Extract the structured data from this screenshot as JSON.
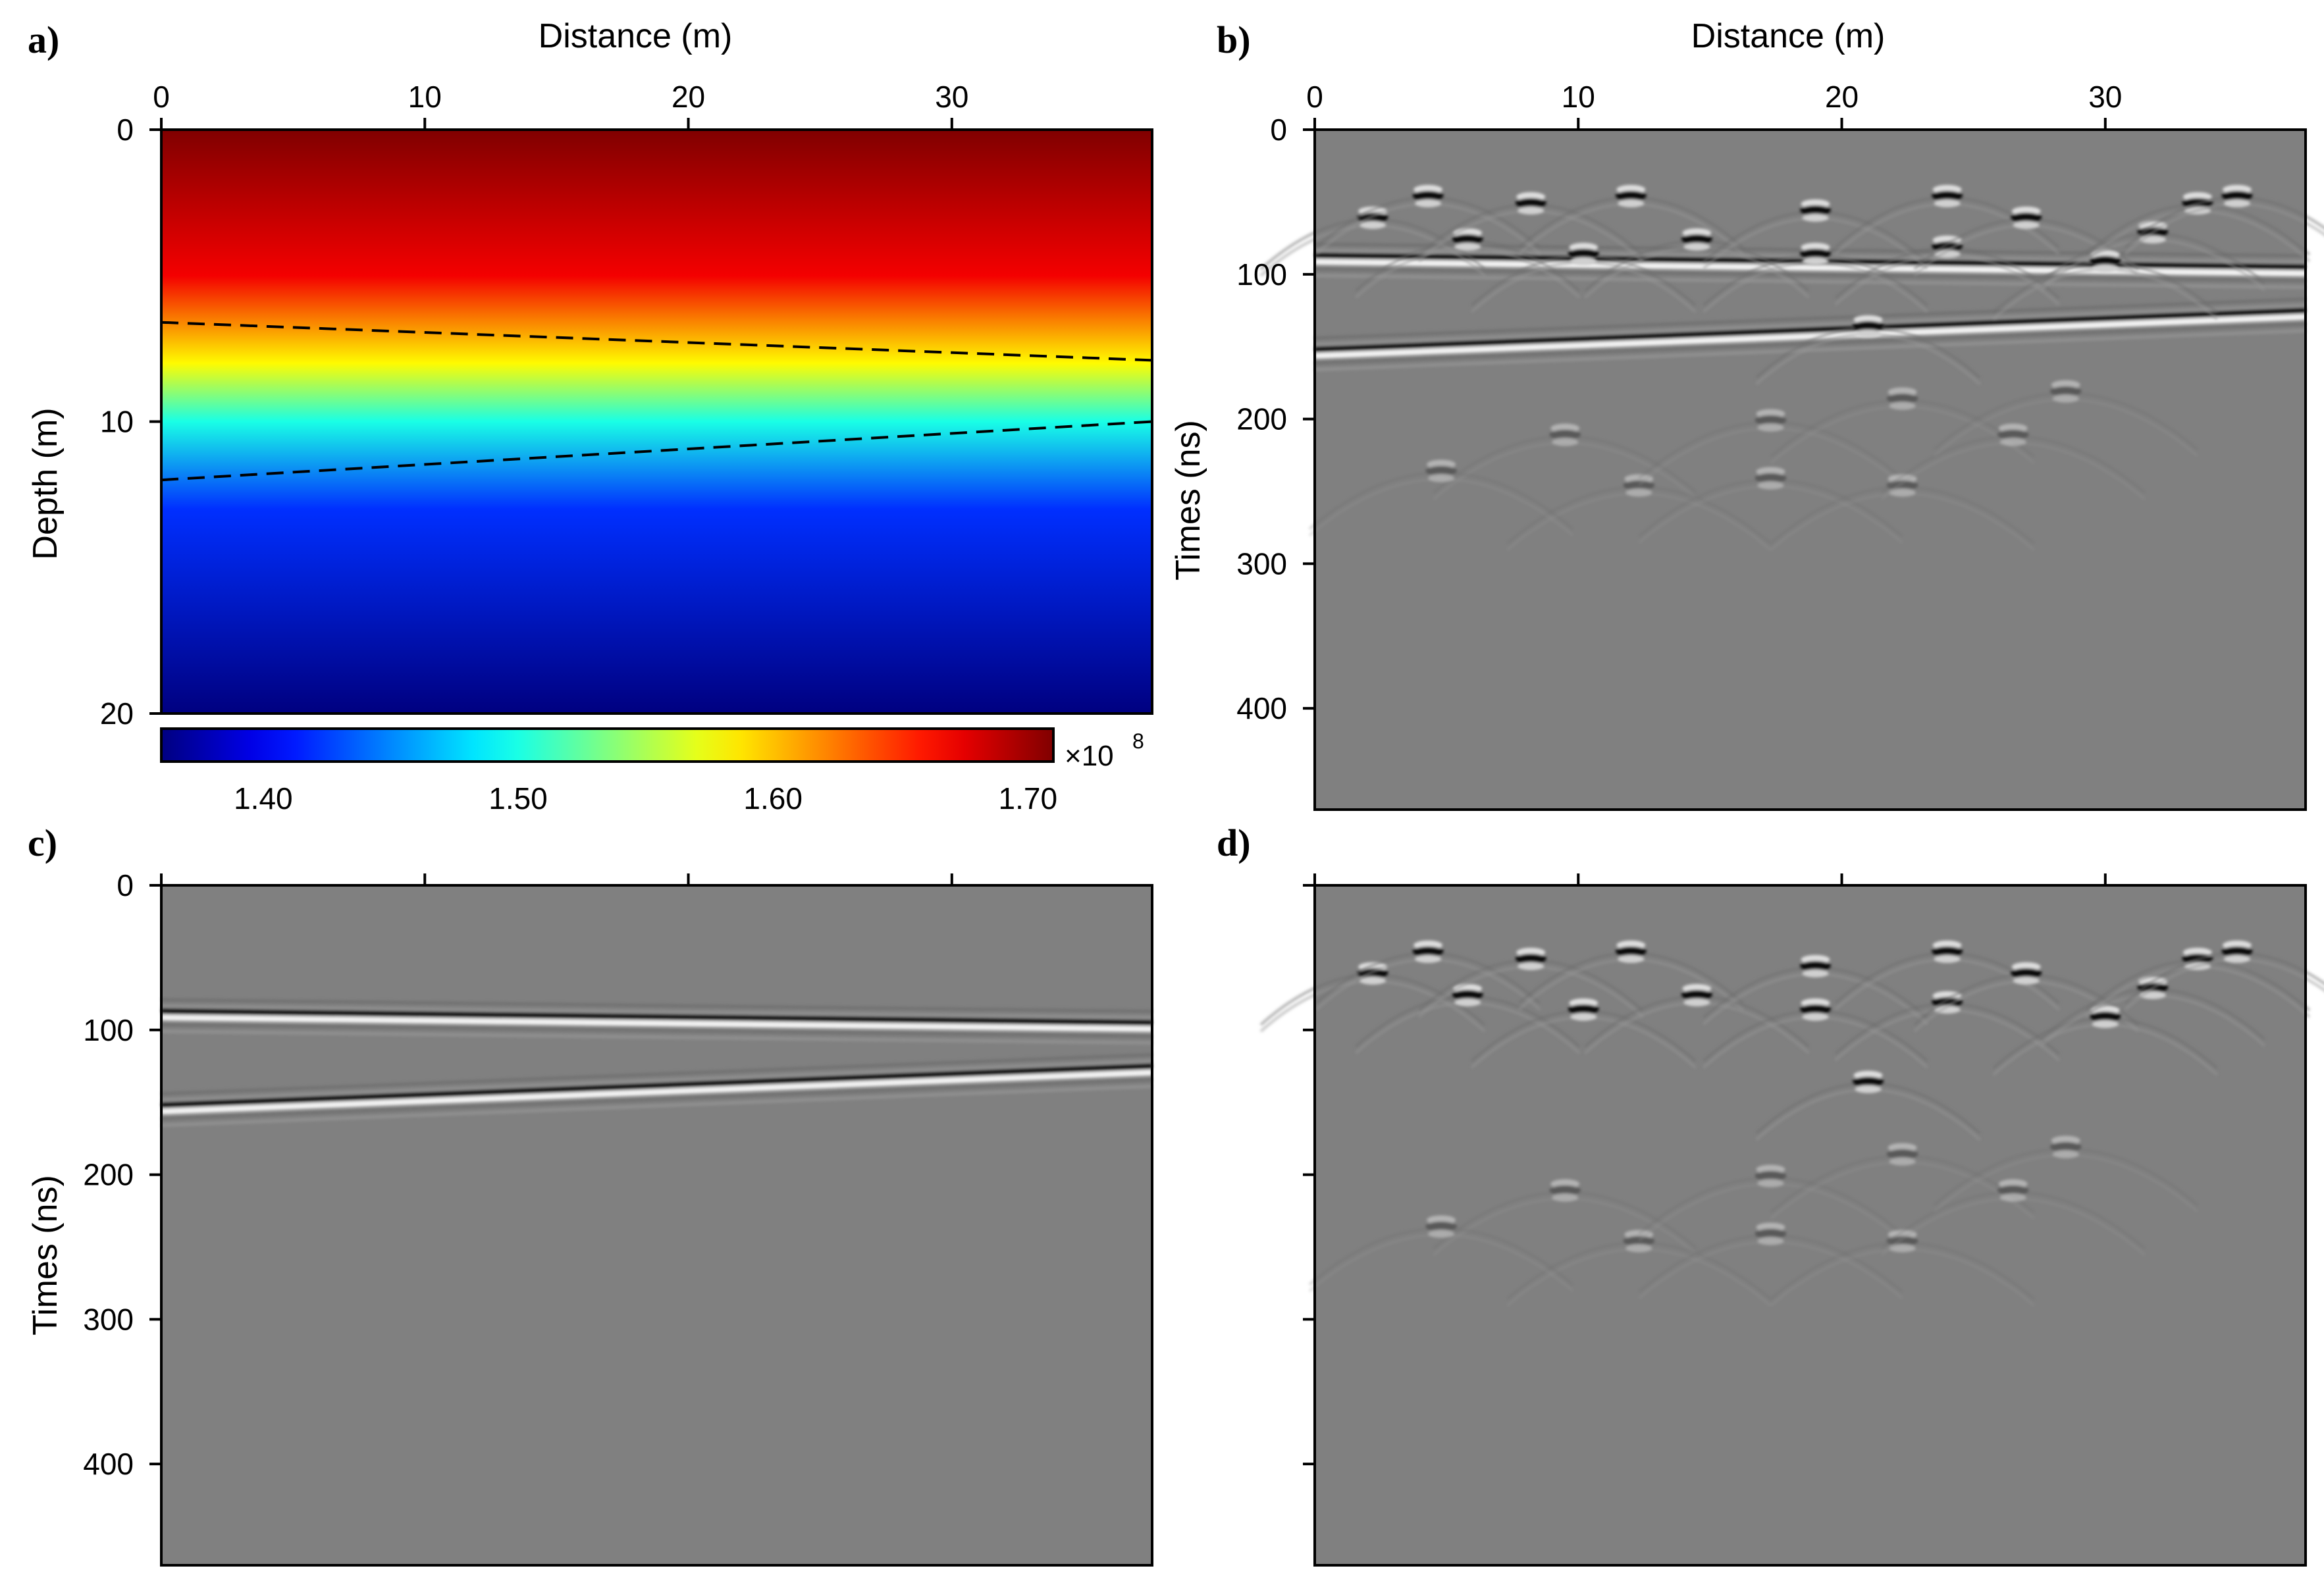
{
  "chart_data": [
    {
      "panel": "a)",
      "type": "heatmap",
      "title": "",
      "xlabel": "Distance (m)",
      "ylabel": "Depth (m)",
      "xlim": [
        0,
        37.6
      ],
      "ylim": [
        0,
        20
      ],
      "xticks": [
        0,
        10,
        20,
        30
      ],
      "yticks": [
        0,
        10,
        20
      ],
      "xtick_labels": [
        "0",
        "10",
        "20",
        "30"
      ],
      "ytick_labels": [
        "0",
        "10",
        "20"
      ],
      "x_axis_position": "top",
      "field_description": "velocity decreasing with depth",
      "depth_profile": [
        {
          "depth": 0,
          "value": 1.71
        },
        {
          "depth": 5,
          "value": 1.67
        },
        {
          "depth": 8,
          "value": 1.58
        },
        {
          "depth": 10,
          "value": 1.5
        },
        {
          "depth": 13,
          "value": 1.42
        },
        {
          "depth": 20,
          "value": 1.36
        }
      ],
      "interfaces": [
        {
          "name": "upper",
          "style": "dashed",
          "x": [
            0,
            37.6
          ],
          "depth": [
            6.6,
            7.9
          ]
        },
        {
          "name": "lower",
          "style": "dashed",
          "x": [
            0,
            37.6
          ],
          "depth": [
            12.0,
            10.0
          ]
        }
      ],
      "colorbar": {
        "colormap": "jet",
        "range": [
          1.36,
          1.71
        ],
        "ticks": [
          1.4,
          1.5,
          1.6,
          1.7
        ],
        "tick_labels": [
          "1.40",
          "1.50",
          "1.60",
          "1.70"
        ],
        "multiplier": "×10",
        "exponent": "8"
      }
    },
    {
      "panel": "b)",
      "type": "heatmap",
      "title": "",
      "xlabel": "Distance (m)",
      "ylabel": "Times (ns)",
      "xlim": [
        0,
        37.6
      ],
      "ylim": [
        0,
        470
      ],
      "xticks": [
        0,
        10,
        20,
        30
      ],
      "yticks": [
        0,
        100,
        200,
        300,
        400
      ],
      "xtick_labels": [
        "0",
        "10",
        "20",
        "30"
      ],
      "ytick_labels": [
        "0",
        "100",
        "200",
        "300",
        "400"
      ],
      "x_axis_position": "top",
      "colormap": "gray",
      "reflectors": [
        {
          "x": [
            0,
            37.6
          ],
          "time": [
            90,
            98
          ]
        },
        {
          "x": [
            0,
            37.6
          ],
          "time": [
            155,
            128
          ]
        }
      ],
      "diffractions": [
        {
          "x": 2.2,
          "time": 60
        },
        {
          "x": 4.3,
          "time": 45
        },
        {
          "x": 5.8,
          "time": 75
        },
        {
          "x": 8.2,
          "time": 50
        },
        {
          "x": 10.2,
          "time": 85
        },
        {
          "x": 12.0,
          "time": 45
        },
        {
          "x": 14.5,
          "time": 75
        },
        {
          "x": 19.0,
          "time": 55
        },
        {
          "x": 19.0,
          "time": 85
        },
        {
          "x": 21.0,
          "time": 135
        },
        {
          "x": 24.0,
          "time": 45
        },
        {
          "x": 24.0,
          "time": 80
        },
        {
          "x": 27.0,
          "time": 60
        },
        {
          "x": 30.0,
          "time": 90
        },
        {
          "x": 31.8,
          "time": 70
        },
        {
          "x": 33.5,
          "time": 50
        },
        {
          "x": 35.0,
          "time": 45
        },
        {
          "x": 9.5,
          "time": 210
        },
        {
          "x": 12.3,
          "time": 245
        },
        {
          "x": 17.3,
          "time": 200
        },
        {
          "x": 17.3,
          "time": 240
        },
        {
          "x": 22.3,
          "time": 185
        },
        {
          "x": 22.3,
          "time": 245
        },
        {
          "x": 26.5,
          "time": 210
        },
        {
          "x": 4.8,
          "time": 235
        },
        {
          "x": 28.5,
          "time": 180
        }
      ]
    },
    {
      "panel": "c)",
      "type": "heatmap",
      "title": "",
      "xlabel": "",
      "ylabel": "Times (ns)",
      "xlim": [
        0,
        37.6
      ],
      "ylim": [
        0,
        470
      ],
      "xticks": [
        0,
        10,
        20,
        30
      ],
      "yticks": [
        0,
        100,
        200,
        300,
        400
      ],
      "xtick_labels": [],
      "ytick_labels": [
        "0",
        "100",
        "200",
        "300",
        "400"
      ],
      "x_axis_position": "top",
      "colormap": "gray",
      "reflectors": [
        {
          "x": [
            0,
            37.6
          ],
          "time": [
            90,
            98
          ]
        },
        {
          "x": [
            0,
            37.6
          ],
          "time": [
            155,
            128
          ]
        }
      ]
    },
    {
      "panel": "d)",
      "type": "heatmap",
      "title": "",
      "xlabel": "",
      "ylabel": "",
      "xlim": [
        0,
        37.6
      ],
      "ylim": [
        0,
        470
      ],
      "xticks": [
        0,
        10,
        20,
        30
      ],
      "yticks": [
        0,
        100,
        200,
        300,
        400
      ],
      "xtick_labels": [],
      "ytick_labels": [],
      "x_axis_position": "top",
      "colormap": "gray",
      "diffractions": [
        {
          "x": 2.2,
          "time": 60
        },
        {
          "x": 4.3,
          "time": 45
        },
        {
          "x": 5.8,
          "time": 75
        },
        {
          "x": 8.2,
          "time": 50
        },
        {
          "x": 10.2,
          "time": 85
        },
        {
          "x": 12.0,
          "time": 45
        },
        {
          "x": 14.5,
          "time": 75
        },
        {
          "x": 19.0,
          "time": 55
        },
        {
          "x": 19.0,
          "time": 85
        },
        {
          "x": 21.0,
          "time": 135
        },
        {
          "x": 24.0,
          "time": 45
        },
        {
          "x": 24.0,
          "time": 80
        },
        {
          "x": 27.0,
          "time": 60
        },
        {
          "x": 30.0,
          "time": 90
        },
        {
          "x": 31.8,
          "time": 70
        },
        {
          "x": 33.5,
          "time": 50
        },
        {
          "x": 35.0,
          "time": 45
        },
        {
          "x": 9.5,
          "time": 210
        },
        {
          "x": 12.3,
          "time": 245
        },
        {
          "x": 17.3,
          "time": 200
        },
        {
          "x": 17.3,
          "time": 240
        },
        {
          "x": 22.3,
          "time": 185
        },
        {
          "x": 22.3,
          "time": 245
        },
        {
          "x": 26.5,
          "time": 210
        },
        {
          "x": 4.8,
          "time": 235
        },
        {
          "x": 28.5,
          "time": 180
        }
      ]
    }
  ]
}
